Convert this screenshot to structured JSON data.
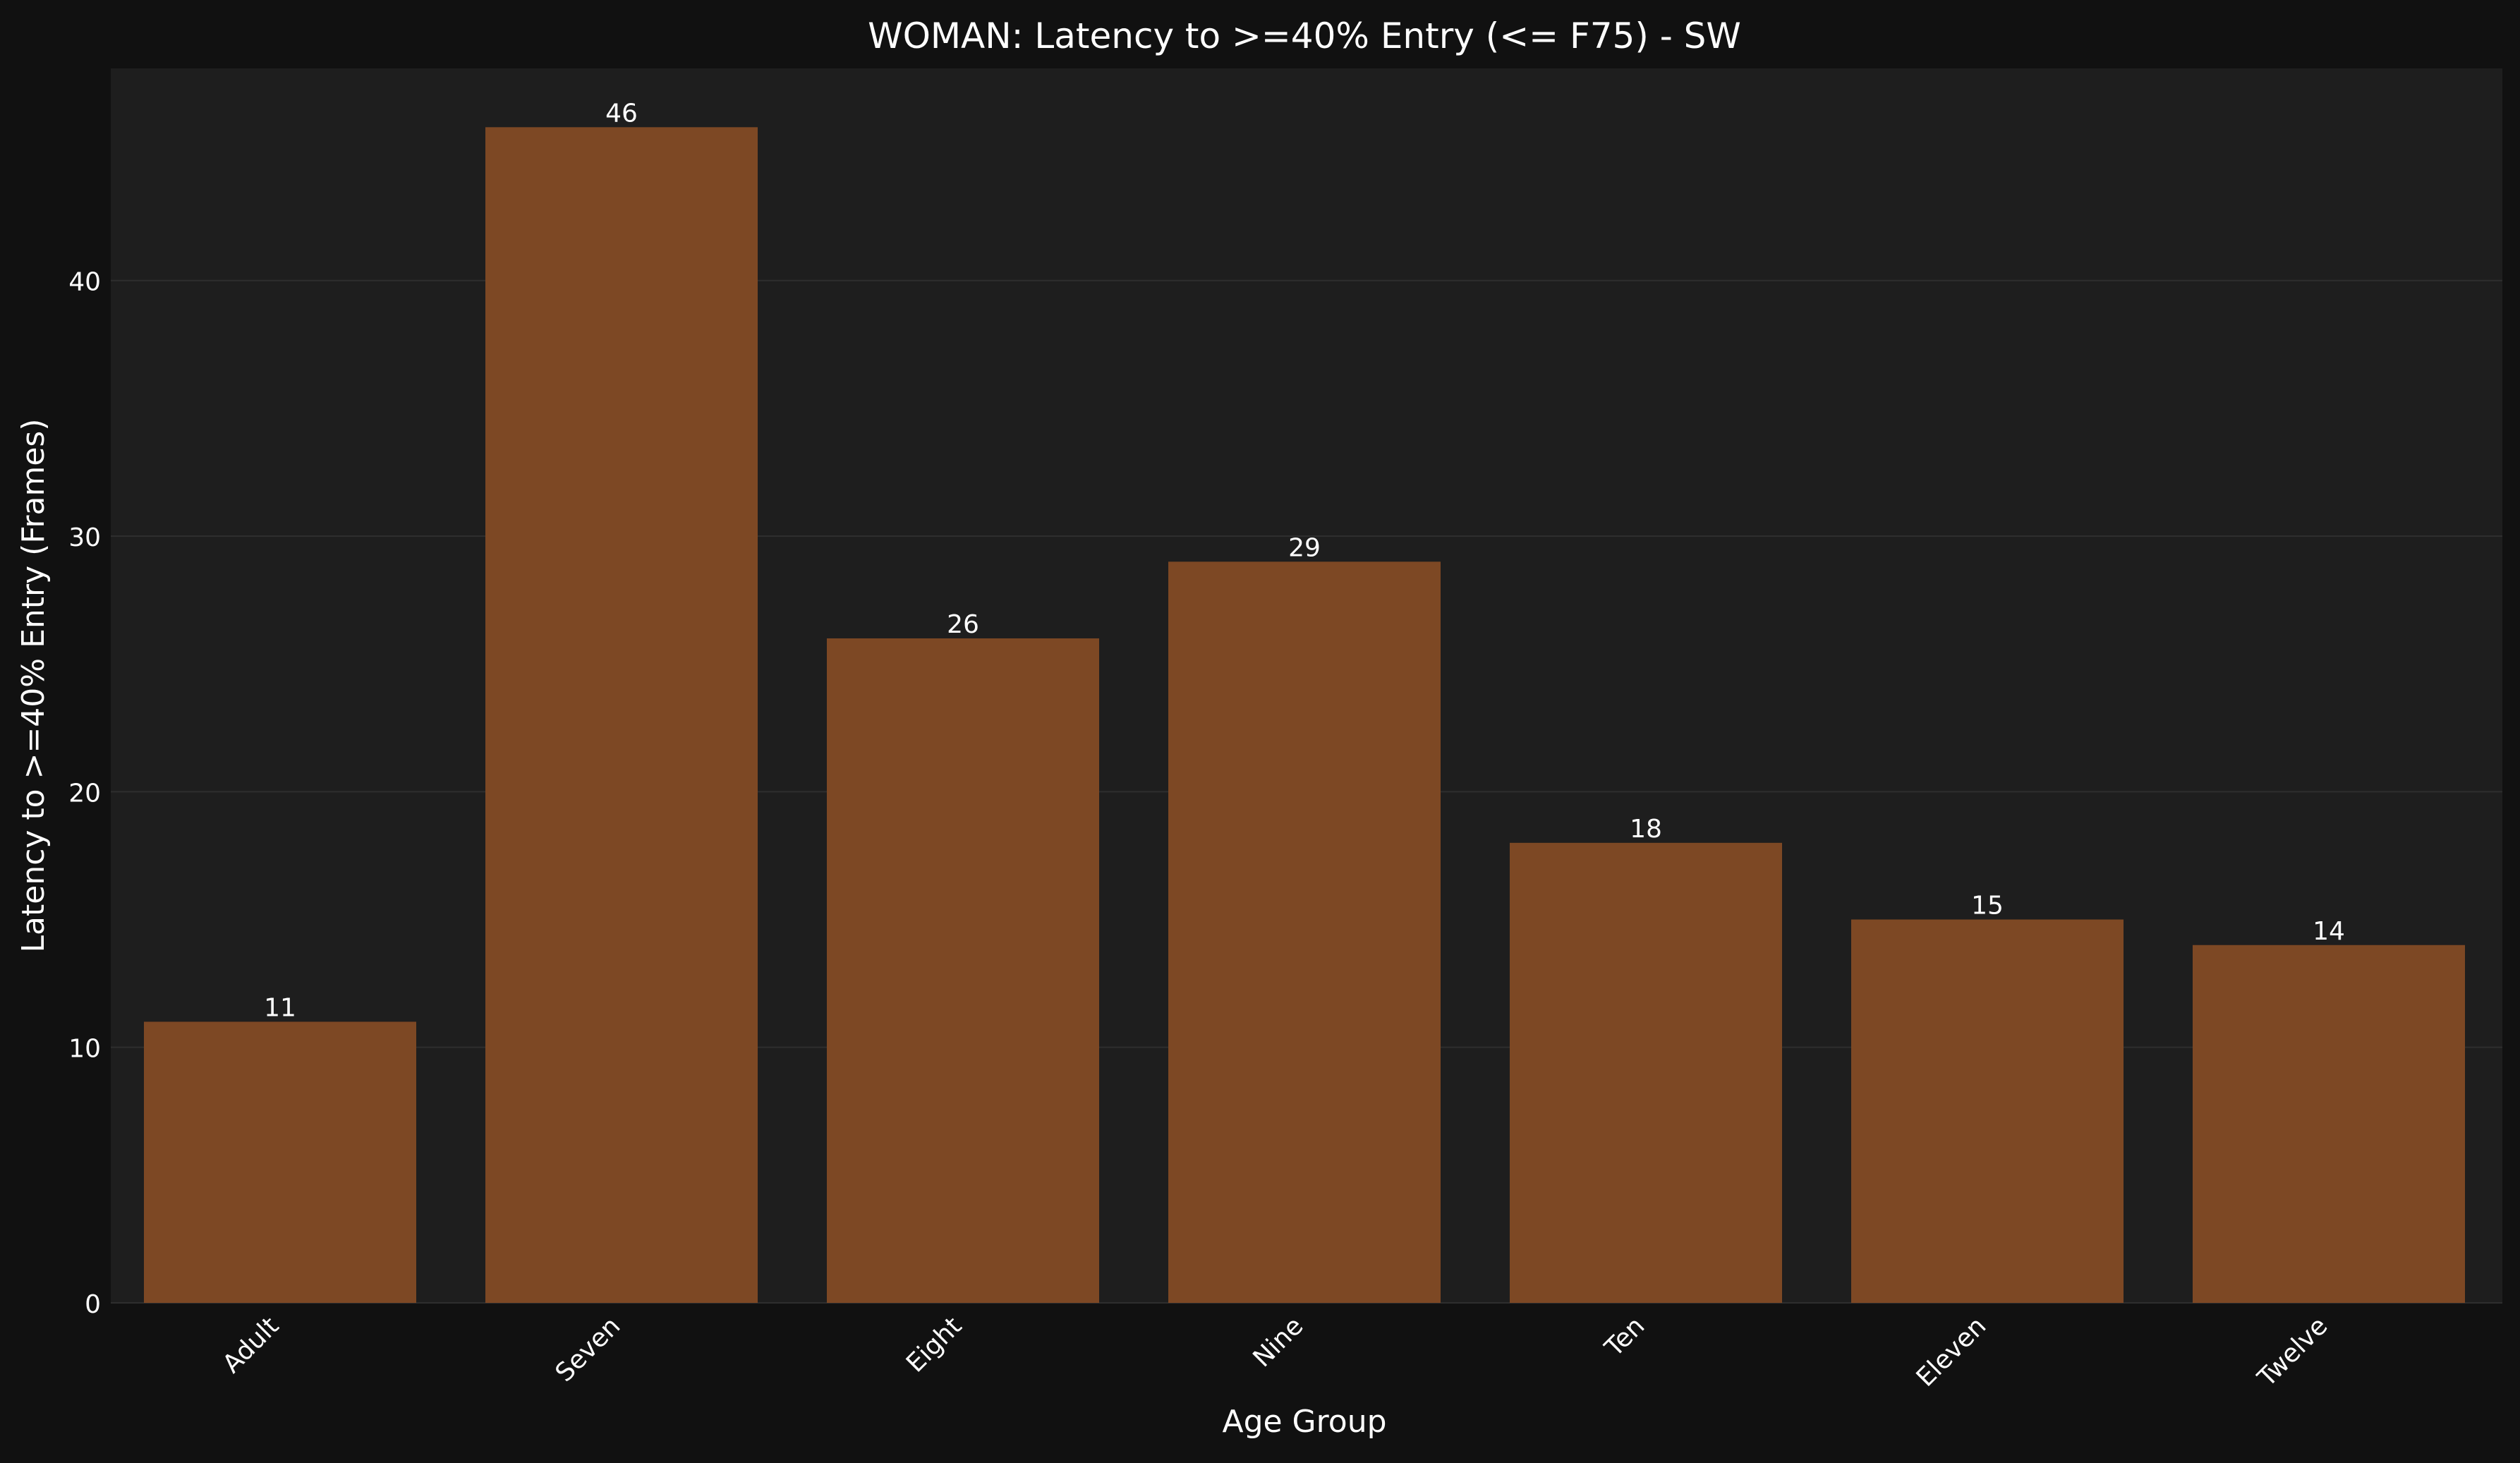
{
  "chart_data": {
    "type": "bar",
    "title": "WOMAN: Latency to >=40% Entry (<= F75) - SW",
    "xlabel": "Age Group",
    "ylabel": "Latency to >=40% Entry (Frames)",
    "categories": [
      "Adult",
      "Seven",
      "Eight",
      "Nine",
      "Ten",
      "Eleven",
      "Twelve"
    ],
    "values": [
      11,
      46,
      26,
      29,
      18,
      15,
      14
    ],
    "value_labels": [
      "11",
      "46",
      "26",
      "29",
      "18",
      "15",
      "14"
    ],
    "yticks": [
      0,
      10,
      20,
      30,
      40
    ],
    "ylim": [
      0,
      48.3
    ],
    "grid": true,
    "legend": "none",
    "colors": {
      "background": "#111111",
      "plot_background": "#1e1e1e",
      "bar": "#7d4824",
      "grid": "#2e2e2e",
      "text": "#ffffff"
    }
  }
}
